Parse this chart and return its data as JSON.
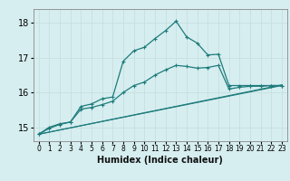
{
  "xlabel": "Humidex (Indice chaleur)",
  "bg_color": "#d6eef0",
  "grid_color": "#c8dfe0",
  "line_color": "#1e7b7b",
  "xlim": [
    -0.5,
    23.5
  ],
  "ylim": [
    14.6,
    18.4
  ],
  "yticks": [
    15,
    16,
    17,
    18
  ],
  "xticks": [
    0,
    1,
    2,
    3,
    4,
    5,
    6,
    7,
    8,
    9,
    10,
    11,
    12,
    13,
    14,
    15,
    16,
    17,
    18,
    19,
    20,
    21,
    22,
    23
  ],
  "series1_x": [
    0,
    1,
    2,
    3,
    4,
    5,
    6,
    7,
    8,
    9,
    10,
    11,
    12,
    13,
    14,
    15,
    16,
    17,
    18,
    19,
    20,
    21,
    22,
    23
  ],
  "series1_y": [
    14.8,
    14.97,
    15.08,
    15.15,
    15.6,
    15.67,
    15.82,
    15.87,
    16.9,
    17.2,
    17.3,
    17.55,
    17.78,
    18.05,
    17.6,
    17.42,
    17.08,
    17.1,
    16.2,
    16.2,
    16.2,
    16.2,
    16.2,
    16.2
  ],
  "series2_x": [
    0,
    1,
    2,
    3,
    4,
    5,
    6,
    7,
    8,
    9,
    10,
    11,
    12,
    13,
    14,
    15,
    16,
    17,
    18,
    19,
    20,
    21,
    22,
    23
  ],
  "series2_y": [
    14.8,
    15.0,
    15.1,
    15.15,
    15.52,
    15.57,
    15.65,
    15.75,
    16.0,
    16.2,
    16.3,
    16.5,
    16.65,
    16.78,
    16.75,
    16.7,
    16.72,
    16.78,
    16.1,
    16.15,
    16.18,
    16.18,
    16.2,
    16.2
  ],
  "line3_x": [
    0,
    23
  ],
  "line3_y": [
    14.8,
    16.2
  ],
  "line4_x": [
    0,
    23
  ],
  "line4_y": [
    14.8,
    16.22
  ]
}
